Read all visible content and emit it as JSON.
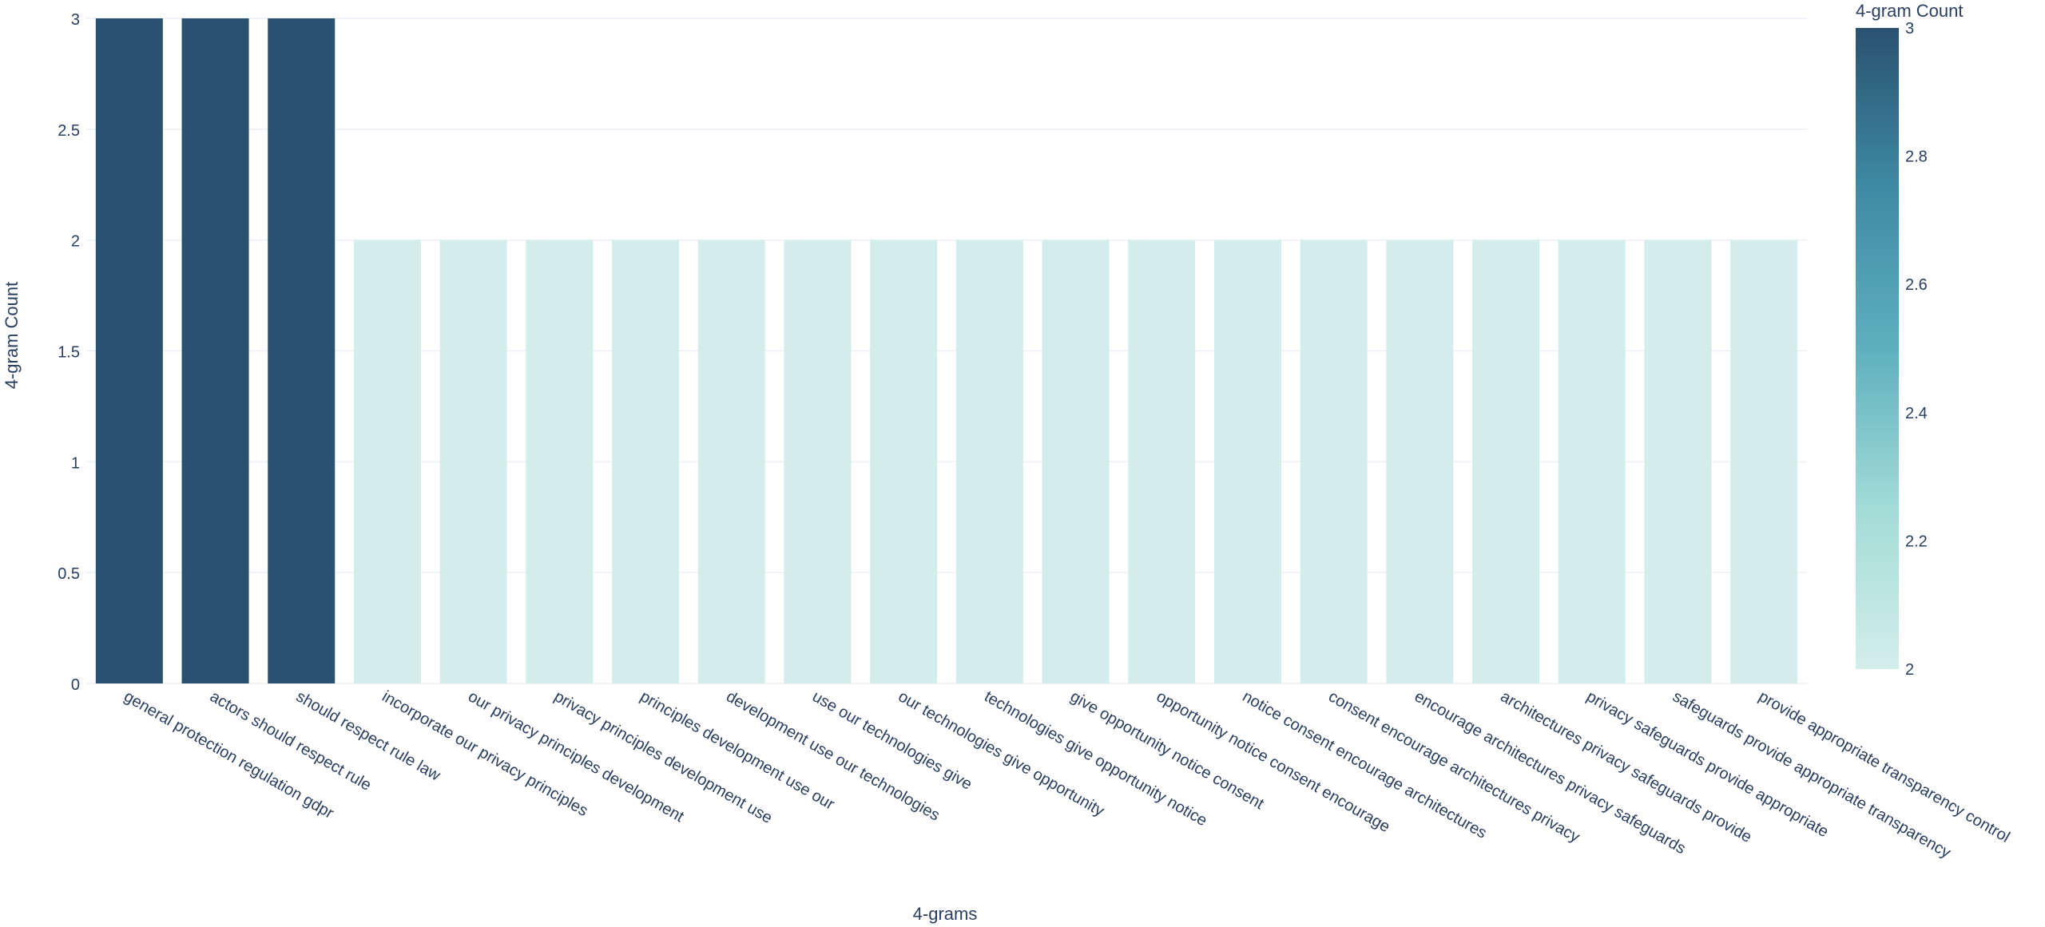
{
  "chart_data": {
    "type": "bar",
    "xlabel": "4-grams",
    "ylabel": "4-gram Count",
    "ylim": [
      0,
      3
    ],
    "yticks": [
      "0",
      "0.5",
      "1",
      "1.5",
      "2",
      "2.5",
      "3"
    ],
    "grid": true,
    "categories": [
      "general protection regulation gdpr",
      "actors should respect rule",
      "should respect rule law",
      "incorporate our privacy principles",
      "our privacy principles development",
      "privacy principles development use",
      "principles development use our",
      "development use our technologies",
      "use our technologies give",
      "our technologies give opportunity",
      "technologies give opportunity notice",
      "give opportunity notice consent",
      "opportunity notice consent encourage",
      "notice consent encourage architectures",
      "consent encourage architectures privacy",
      "encourage architectures privacy safeguards",
      "architectures privacy safeguards provide",
      "privacy safeguards provide appropriate",
      "safeguards provide appropriate transparency",
      "provide appropriate transparency control"
    ],
    "values": [
      3,
      3,
      3,
      2,
      2,
      2,
      2,
      2,
      2,
      2,
      2,
      2,
      2,
      2,
      2,
      2,
      2,
      2,
      2,
      2
    ],
    "colorbar": {
      "title": "4-gram Count",
      "range": [
        2,
        3
      ],
      "ticks": [
        "2",
        "2.2",
        "2.4",
        "2.6",
        "2.8",
        "3"
      ],
      "colorscale": [
        "#d3eeea",
        "#a3dcd8",
        "#5eb0be",
        "#3e8aa4",
        "#2a5270"
      ]
    },
    "colors": {
      "axis_text": "#2a3f5f",
      "grid": "#ebf0f8",
      "high": "#2a5270",
      "low": "#d3eeea"
    }
  }
}
